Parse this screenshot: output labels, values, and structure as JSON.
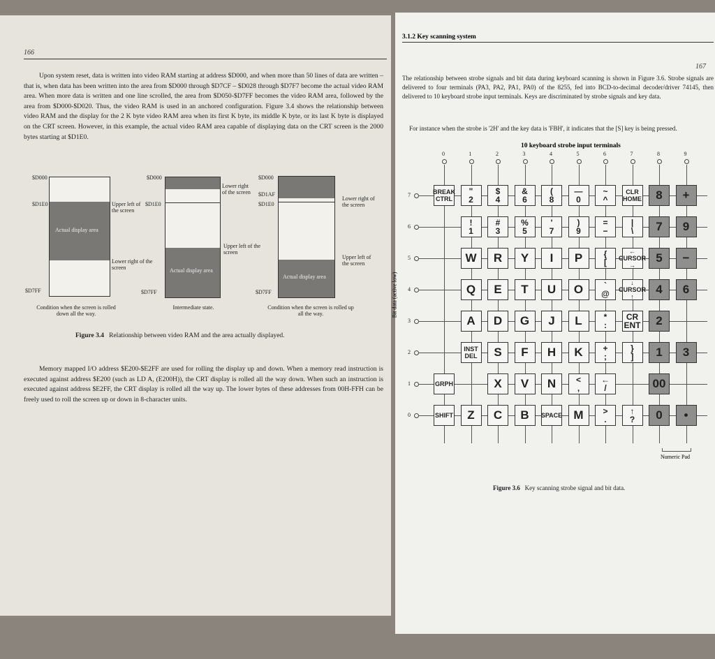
{
  "left_page": {
    "page_number": "166",
    "paragraph1": "Upon system reset, data is written into video RAM starting at address $D000, and when more than 50 lines of data are written – that is, when data has been written into the area from $D000 through $D7CF – $D028 through $D7F7 become the actual video RAM area. When more data is written and one line scrolled, the area from $D050-$D7FF becomes the video RAM area, followed by the area from $D000-$D020. Thus, the video RAM is used in an anchored configuration. Figure 3.4 shows the relationship between video RAM and the display for the 2 K byte video RAM area when its first K byte, its middle K byte, or its last K byte is displayed on the CRT screen. However, in this example, the actual video RAM area capable of displaying data on the CRT screen is the 2000 bytes starting at $D1E0.",
    "figure": {
      "diagrams": [
        {
          "top": "$D000",
          "mid": "$D1E0",
          "bottom": "$D7FF",
          "area": "Actual display area",
          "note1": "Upper left of the screen",
          "note2": "Lower right of the screen",
          "caption": "Condition when the screen is rolled down all the way."
        },
        {
          "top": "$D000",
          "mid": "$D1E0",
          "bottom": "$D7FF",
          "area": "Actual display area",
          "note1": "Lower right of the screen",
          "note2": "Upper left of the screen",
          "caption": "Intermediate state."
        },
        {
          "top": "$D000",
          "mid2": "$D1AF",
          "mid": "$D1E0",
          "bottom": "$D7FF",
          "area": "Actual display area",
          "note1": "Lower right of the screen",
          "note2": "Upper left of the screen",
          "caption": "Condition when the screen is rolled up all the way."
        }
      ],
      "caption_number": "Figure 3.4",
      "caption": "Relationship between video RAM and the area actually displayed."
    },
    "paragraph2": "Memory mapped I/O address $E200-$E2FF are used for rolling the display up and down. When a memory read instruction is executed against address $E200 (such as LD A, (E200H)), the CRT display is rolled all the way down. When such an instruction is executed against address $E2FF, the CRT display is rolled all the way up. The lower bytes of these addresses from 00H-FFH can be freely used to roll the screen up or down in 8-character units."
  },
  "right_page": {
    "page_number": "167",
    "section": "3.1.2 Key scanning system",
    "paragraph1": "The relationship between strobe signals and bit data during keyboard scanning is shown in Figure 3.6. Strobe signals are delivered to four terminals (PA3, PA2, PA1, PA0) of the 8255, fed into BCD-to-decimal decoder/driver 74145, then delivered to 10 keyboard strobe input terminals. Keys are discriminated by strobe signals and key data.",
    "paragraph2": "For instance when the strobe is '2H' and the key data is 'FBH', it indicates that the [S] key is being pressed.",
    "figure": {
      "strobe_title": "10 keyboard strobe input terminals",
      "bit_axis_label": "Bit data (active low)",
      "columns": [
        "0",
        "1",
        "2",
        "3",
        "4",
        "5",
        "6",
        "7",
        "8",
        "9"
      ],
      "rows": [
        "7",
        "6",
        "5",
        "4",
        "3",
        "2",
        "1",
        "0"
      ],
      "keys": [
        [
          [
            "BREAK",
            "CTRL"
          ],
          [
            "\"",
            "2"
          ],
          [
            "$",
            "4"
          ],
          [
            "&",
            "6"
          ],
          [
            "(",
            "8"
          ],
          [
            "—",
            "0"
          ],
          [
            "~",
            "^"
          ],
          [
            "CLR",
            "HOME"
          ],
          [
            "8"
          ],
          [
            "+"
          ]
        ],
        [
          null,
          [
            "!",
            "1"
          ],
          [
            "#",
            "3"
          ],
          [
            "%",
            "5"
          ],
          [
            "'",
            "7"
          ],
          [
            ")",
            "9"
          ],
          [
            "=",
            "−"
          ],
          [
            "|",
            "\\"
          ],
          [
            "7"
          ],
          [
            "9"
          ]
        ],
        [
          null,
          [
            "W"
          ],
          [
            "R"
          ],
          [
            "Y"
          ],
          [
            "I"
          ],
          [
            "P"
          ],
          [
            "{",
            "["
          ],
          [
            "←",
            "CURSOR",
            "→"
          ],
          [
            "5"
          ],
          [
            "−"
          ]
        ],
        [
          null,
          [
            "Q"
          ],
          [
            "E"
          ],
          [
            "T"
          ],
          [
            "U"
          ],
          [
            "O"
          ],
          [
            "`",
            "@"
          ],
          [
            "↓",
            "CURSOR",
            "↑"
          ],
          [
            "4"
          ],
          [
            "6"
          ]
        ],
        [
          null,
          [
            "A"
          ],
          [
            "D"
          ],
          [
            "G"
          ],
          [
            "J"
          ],
          [
            "L"
          ],
          [
            "*",
            ":"
          ],
          [
            "CR",
            "ENT"
          ],
          [
            "2"
          ],
          null
        ],
        [
          null,
          [
            "INST",
            "DEL"
          ],
          [
            "S"
          ],
          [
            "F"
          ],
          [
            "H"
          ],
          [
            "K"
          ],
          [
            "+",
            ";"
          ],
          [
            "}",
            "]"
          ],
          [
            "1"
          ],
          [
            "3"
          ]
        ],
        [
          [
            "GRPH"
          ],
          null,
          [
            "X"
          ],
          [
            "V"
          ],
          [
            "N"
          ],
          [
            "<",
            ","
          ],
          [
            "←",
            "/"
          ],
          null,
          [
            "00"
          ],
          null
        ],
        [
          [
            "SHIFT"
          ],
          [
            "Z"
          ],
          [
            "C"
          ],
          [
            "B"
          ],
          [
            "SPACE"
          ],
          [
            "M"
          ],
          [
            ">",
            "."
          ],
          [
            "↑",
            "?"
          ],
          [
            "0"
          ],
          [
            "•"
          ]
        ]
      ],
      "numeric_pad_columns": [
        "8",
        "9"
      ],
      "numeric_pad_label": "Numeric Pad",
      "caption_number": "Figure 3.6",
      "caption": "Key scanning strobe signal and bit data."
    }
  }
}
